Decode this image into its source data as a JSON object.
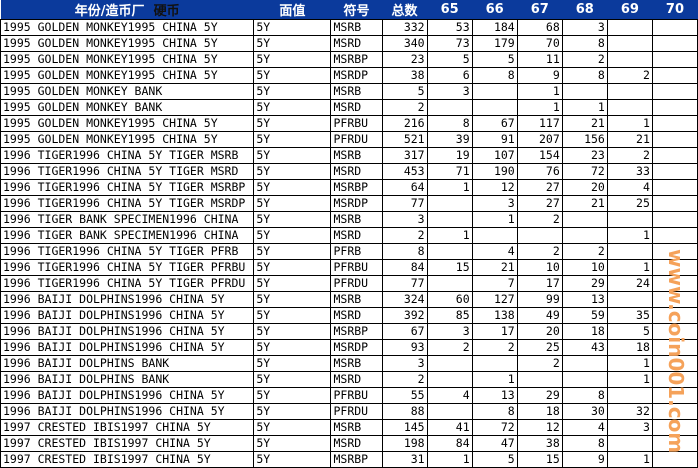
{
  "header": {
    "coin_a": "年份/造币厂",
    "coin_b": "硬币",
    "denom": "面值",
    "symbol": "符号",
    "total": "总数",
    "grades": [
      "65",
      "66",
      "67",
      "68",
      "69",
      "70"
    ]
  },
  "rows": [
    [
      "1995 GOLDEN MONKEY1995 CHINA 5Y",
      "5Y",
      "MSRB",
      "332",
      "53",
      "184",
      "68",
      "3",
      "",
      ""
    ],
    [
      "1995 GOLDEN MONKEY1995 CHINA 5Y",
      "5Y",
      "MSRD",
      "340",
      "73",
      "179",
      "70",
      "8",
      "",
      ""
    ],
    [
      "1995 GOLDEN MONKEY1995 CHINA 5Y",
      "5Y",
      "MSRBP",
      "23",
      "5",
      "5",
      "11",
      "2",
      "",
      ""
    ],
    [
      "1995 GOLDEN MONKEY1995 CHINA 5Y",
      "5Y",
      "MSRDP",
      "38",
      "6",
      "8",
      "9",
      "8",
      "2",
      ""
    ],
    [
      "1995 GOLDEN MONKEY BANK",
      "5Y",
      "MSRB",
      "5",
      "3",
      "",
      "1",
      "",
      "",
      ""
    ],
    [
      "1995 GOLDEN MONKEY BANK",
      "5Y",
      "MSRD",
      "2",
      "",
      "",
      "1",
      "1",
      "",
      ""
    ],
    [
      "1995 GOLDEN MONKEY1995 CHINA 5Y",
      "5Y",
      "PFRBU",
      "216",
      "8",
      "67",
      "117",
      "21",
      "1",
      ""
    ],
    [
      "1995 GOLDEN MONKEY1995 CHINA 5Y",
      "5Y",
      "PFRDU",
      "521",
      "39",
      "91",
      "207",
      "156",
      "21",
      ""
    ],
    [
      "1996 TIGER1996 CHINA 5Y TIGER MSRB",
      "5Y",
      "MSRB",
      "317",
      "19",
      "107",
      "154",
      "23",
      "2",
      ""
    ],
    [
      "1996 TIGER1996 CHINA 5Y TIGER MSRD",
      "5Y",
      "MSRD",
      "453",
      "71",
      "190",
      "76",
      "72",
      "33",
      ""
    ],
    [
      "1996 TIGER1996 CHINA 5Y TIGER MSRBP",
      "5Y",
      "MSRBP",
      "64",
      "1",
      "12",
      "27",
      "20",
      "4",
      ""
    ],
    [
      "1996 TIGER1996 CHINA 5Y TIGER MSRDP",
      "5Y",
      "MSRDP",
      "77",
      "",
      "3",
      "27",
      "21",
      "25",
      ""
    ],
    [
      "1996 TIGER BANK SPECIMEN1996 CHINA",
      "5Y",
      "MSRB",
      "3",
      "",
      "1",
      "2",
      "",
      "",
      ""
    ],
    [
      "1996 TIGER BANK SPECIMEN1996 CHINA",
      "5Y",
      "MSRD",
      "2",
      "1",
      "",
      "",
      "",
      "1",
      ""
    ],
    [
      "1996 TIGER1996 CHINA 5Y TIGER PFRB",
      "5Y",
      "PFRB",
      "8",
      "",
      "4",
      "2",
      "2",
      "",
      ""
    ],
    [
      "1996 TIGER1996 CHINA 5Y TIGER PFRBU",
      "5Y",
      "PFRBU",
      "84",
      "15",
      "21",
      "10",
      "10",
      "1",
      ""
    ],
    [
      "1996 TIGER1996 CHINA 5Y TIGER PFRDU",
      "5Y",
      "PFRDU",
      "77",
      "",
      "7",
      "17",
      "29",
      "24",
      ""
    ],
    [
      "1996 BAIJI DOLPHINS1996 CHINA 5Y",
      "5Y",
      "MSRB",
      "324",
      "60",
      "127",
      "99",
      "13",
      "",
      ""
    ],
    [
      "1996 BAIJI DOLPHINS1996 CHINA 5Y",
      "5Y",
      "MSRD",
      "392",
      "85",
      "138",
      "49",
      "59",
      "35",
      ""
    ],
    [
      "1996 BAIJI DOLPHINS1996 CHINA 5Y",
      "5Y",
      "MSRBP",
      "67",
      "3",
      "17",
      "20",
      "18",
      "5",
      ""
    ],
    [
      "1996 BAIJI DOLPHINS1996 CHINA 5Y",
      "5Y",
      "MSRDP",
      "93",
      "2",
      "2",
      "25",
      "43",
      "18",
      ""
    ],
    [
      "1996 BAIJI DOLPHINS BANK",
      "5Y",
      "MSRB",
      "3",
      "",
      "",
      "2",
      "",
      "1",
      ""
    ],
    [
      "1996 BAIJI DOLPHINS BANK",
      "5Y",
      "MSRD",
      "2",
      "",
      "1",
      "",
      "",
      "1",
      ""
    ],
    [
      "1996 BAIJI DOLPHINS1996 CHINA 5Y",
      "5Y",
      "PFRBU",
      "55",
      "4",
      "13",
      "29",
      "8",
      "",
      ""
    ],
    [
      "1996 BAIJI DOLPHINS1996 CHINA 5Y",
      "5Y",
      "PFRDU",
      "88",
      "",
      "8",
      "18",
      "30",
      "32",
      ""
    ],
    [
      "1997 CRESTED IBIS1997 CHINA 5Y",
      "5Y",
      "MSRB",
      "145",
      "41",
      "72",
      "12",
      "4",
      "3",
      ""
    ],
    [
      "1997 CRESTED IBIS1997 CHINA 5Y",
      "5Y",
      "MSRD",
      "198",
      "84",
      "47",
      "38",
      "8",
      "",
      ""
    ],
    [
      "1997 CRESTED IBIS1997 CHINA 5Y",
      "5Y",
      "MSRBP",
      "31",
      "1",
      "5",
      "15",
      "9",
      "1",
      ""
    ]
  ],
  "watermark": "www.coin001.com",
  "colors": {
    "header_bg": "#0b3a9c",
    "header_text": "#ffffff",
    "watermark": "#f5a25a"
  }
}
